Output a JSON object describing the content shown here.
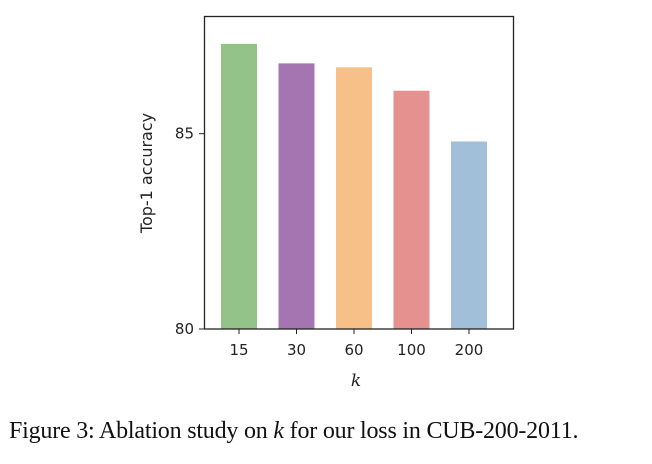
{
  "chart_data": {
    "type": "bar",
    "categories": [
      "15",
      "30",
      "60",
      "100",
      "200"
    ],
    "values": [
      87.3,
      86.8,
      86.7,
      86.1,
      84.8
    ],
    "colors": [
      "#93c389",
      "#a475b0",
      "#f7c088",
      "#e59190",
      "#a1bfd9"
    ],
    "title": "",
    "xlabel": "k",
    "ylabel": "Top-1 accuracy",
    "ylim": [
      80,
      88
    ],
    "yticks": [
      80,
      85
    ],
    "grid": false
  },
  "caption": {
    "prefix": "Figure 3: Ablation study on ",
    "var": "k",
    "suffix": " for our loss in CUB-200-2011."
  }
}
